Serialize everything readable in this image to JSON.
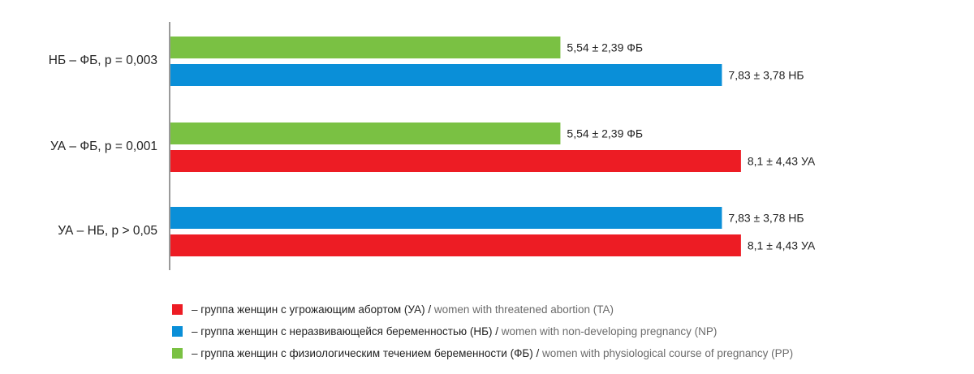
{
  "chart_data": {
    "type": "bar",
    "orientation": "horizontal",
    "xlim": [
      0,
      10
    ],
    "grid": false,
    "legend_placement": "bottom",
    "groups": [
      {
        "label": "НБ – ФБ, p = 0,003",
        "bars": [
          {
            "series": "ФБ",
            "value": 5.54,
            "label": "5,54 ± 2,39 ФБ"
          },
          {
            "series": "НБ",
            "value": 7.83,
            "label": "7,83 ± 3,78 НБ"
          }
        ]
      },
      {
        "label": "УА – ФБ, p = 0,001",
        "bars": [
          {
            "series": "ФБ",
            "value": 5.54,
            "label": "5,54 ± 2,39 ФБ"
          },
          {
            "series": "УА",
            "value": 8.1,
            "label": "8,1 ± 4,43 УА"
          }
        ]
      },
      {
        "label": "УА – НБ, p > 0,05",
        "bars": [
          {
            "series": "НБ",
            "value": 7.83,
            "label": "7,83 ± 3,78 НБ"
          },
          {
            "series": "УА",
            "value": 8.1,
            "label": "8,1 ± 4,43 УА"
          }
        ]
      }
    ],
    "series_colors": {
      "УА": "#ed1c24",
      "НБ": "#0a8fd8",
      "ФБ": "#7ac143"
    }
  },
  "legend": [
    {
      "series": "УА",
      "ru": "– группа женщин с угрожающим абортом (УА)",
      "sep": " / ",
      "en": "women with threatened abortion (TA)"
    },
    {
      "series": "НБ",
      "ru": "– группа женщин с неразвивающейся беременностью (НБ)",
      "sep": " / ",
      "en": "women with non-developing pregnancy (NP)"
    },
    {
      "series": "ФБ",
      "ru": "– группа женщин с физиологическим течением беременности (ФБ)",
      "sep": " / ",
      "en": "women with physiological course of pregnancy (PP)"
    }
  ]
}
